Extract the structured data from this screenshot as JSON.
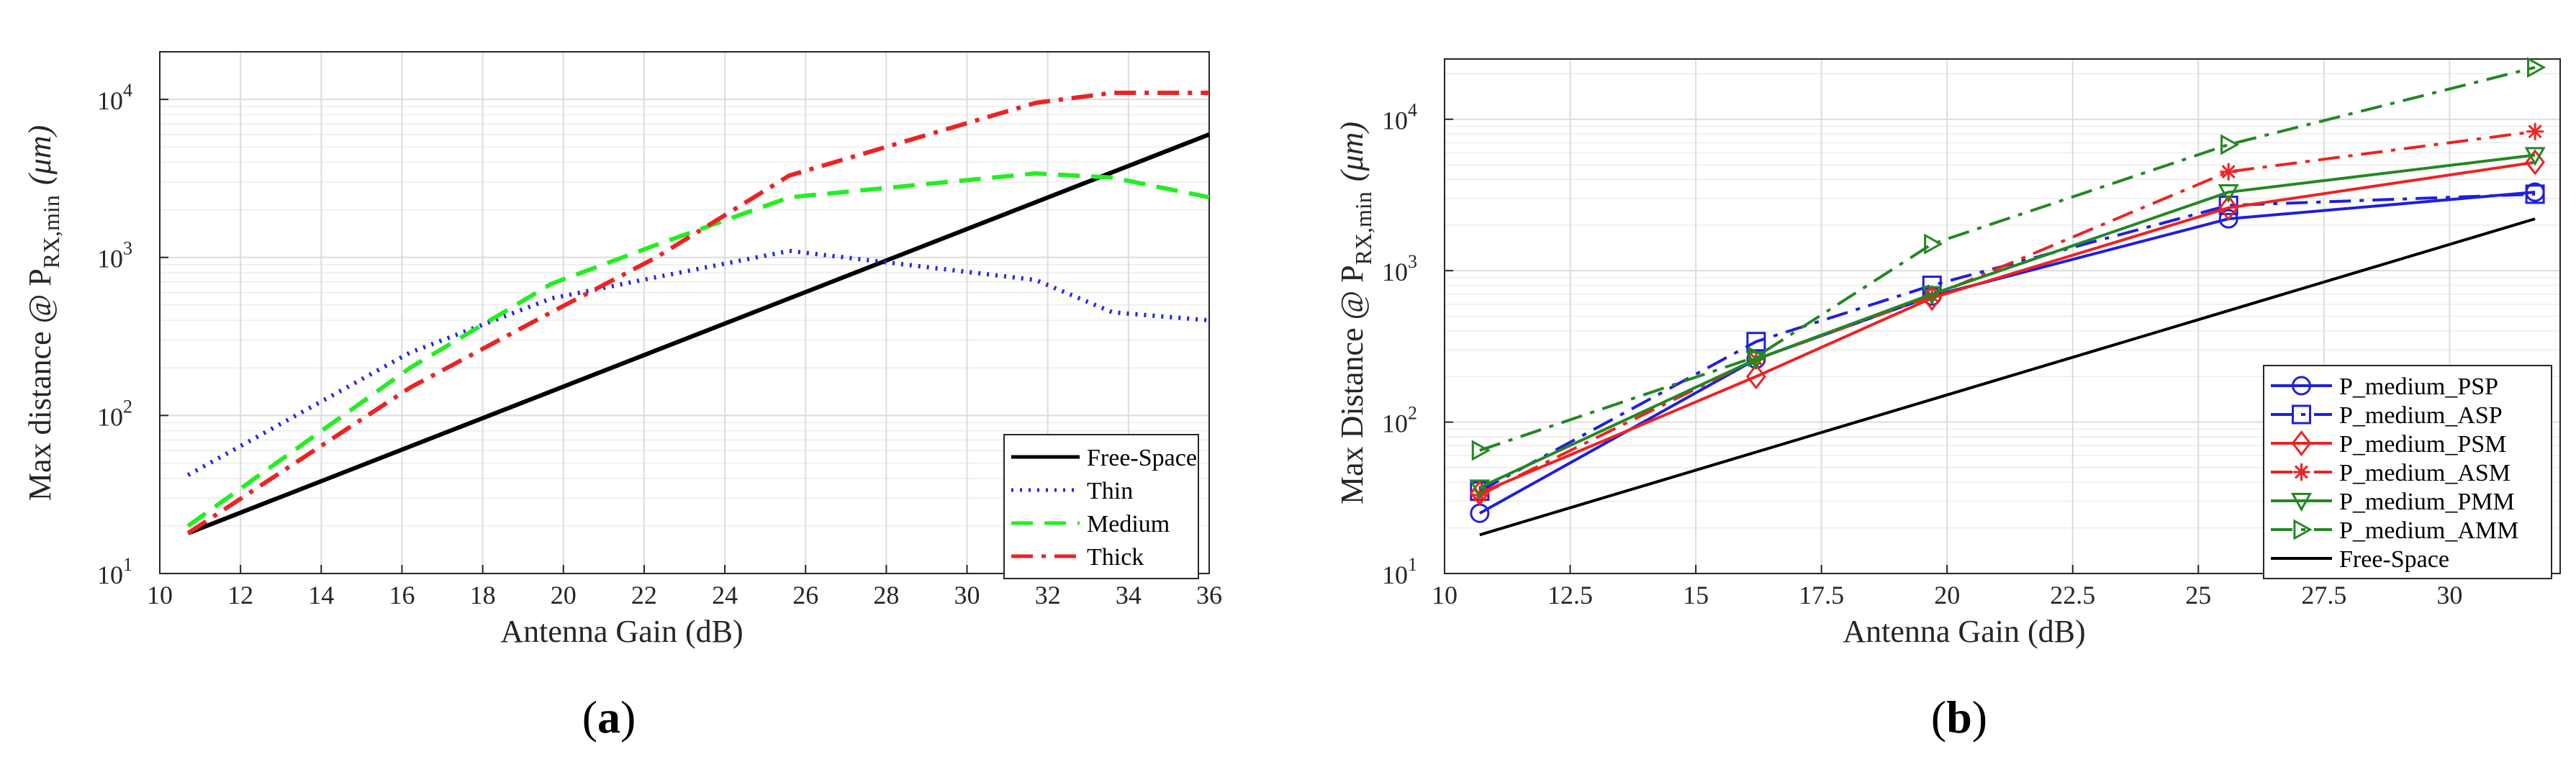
{
  "chart_data": [
    {
      "type": "line",
      "id": "a",
      "caption_open": "(",
      "caption_letter": "a",
      "caption_close": ")",
      "xlabel": "Antenna Gain (dB)",
      "ylabel_main": "Max distance @ P",
      "ylabel_sub": "RX,min",
      "ylabel_unit": "(μm)",
      "yscale": "log",
      "xlim": [
        10,
        36
      ],
      "ylim": [
        10,
        20000
      ],
      "xticks": [
        10,
        12,
        14,
        16,
        18,
        20,
        22,
        24,
        26,
        28,
        30,
        32,
        34,
        36
      ],
      "xtick_labels": [
        "10",
        "12",
        "14",
        "16",
        "18",
        "20",
        "22",
        "24",
        "26",
        "28",
        "30",
        "32",
        "34",
        "36"
      ],
      "yticks": [
        10,
        100,
        1000,
        10000
      ],
      "ytick_base": [
        "10",
        "10",
        "10",
        "10"
      ],
      "ytick_exp": [
        "1",
        "2",
        "3",
        "4"
      ],
      "legend_position": "lower-right",
      "series": [
        {
          "name": "Free-Space",
          "color": "#000000",
          "dash": "solid",
          "x": [
            10.7,
            36
          ],
          "y": [
            18,
            6000
          ]
        },
        {
          "name": "Thin",
          "color": "#2222ee",
          "dash": "dot",
          "x": [
            10.7,
            16.2,
            19.7,
            22.3,
            25.6,
            31.7,
            33.6,
            36
          ],
          "y": [
            42,
            250,
            550,
            750,
            1100,
            720,
            450,
            400
          ]
        },
        {
          "name": "Medium",
          "color": "#22ee22",
          "dash": "dash",
          "x": [
            10.7,
            16.2,
            19.7,
            22.3,
            25.6,
            31.7,
            33.6,
            36
          ],
          "y": [
            20,
            200,
            680,
            1200,
            2400,
            3400,
            3200,
            2400
          ]
        },
        {
          "name": "Thick",
          "color": "#ee2222",
          "dash": "dashdot",
          "x": [
            10.7,
            16.2,
            19.7,
            22.3,
            25.6,
            31.7,
            33.6,
            36
          ],
          "y": [
            18,
            150,
            450,
            1000,
            3300,
            9500,
            11000,
            11000
          ]
        }
      ]
    },
    {
      "type": "line",
      "id": "b",
      "caption_open": "(",
      "caption_letter": "b",
      "caption_close": ")",
      "xlabel": "Antenna Gain (dB)",
      "ylabel_main": "Max Distance @ P",
      "ylabel_sub": "RX,min",
      "ylabel_unit": "(μm)",
      "yscale": "log",
      "xlim": [
        10,
        32.2
      ],
      "ylim": [
        10,
        25000
      ],
      "xticks": [
        10,
        12.5,
        15,
        17.5,
        20,
        22.5,
        25,
        27.5,
        30
      ],
      "xtick_labels": [
        "10",
        "12.5",
        "15",
        "17.5",
        "20",
        "22.5",
        "25",
        "27.5",
        "30"
      ],
      "yticks": [
        10,
        100,
        1000,
        10000
      ],
      "ytick_base": [
        "10",
        "10",
        "10",
        "10"
      ],
      "ytick_exp": [
        "1",
        "2",
        "3",
        "4"
      ],
      "legend_position": "lower-right",
      "series": [
        {
          "name": "P_medium_PSP",
          "color": "#1f1fdd",
          "dash": "solid",
          "marker": "circle",
          "x": [
            10.7,
            16.2,
            19.7,
            25.6,
            31.7
          ],
          "y": [
            25,
            260,
            680,
            2200,
            3300
          ]
        },
        {
          "name": "P_medium_ASP",
          "color": "#1f1fdd",
          "dash": "dashdot",
          "marker": "square",
          "x": [
            10.7,
            16.2,
            19.7,
            25.6,
            31.7
          ],
          "y": [
            35,
            340,
            800,
            2700,
            3200
          ]
        },
        {
          "name": "P_medium_PSM",
          "color": "#ee2222",
          "dash": "solid",
          "marker": "diamond",
          "x": [
            10.7,
            16.2,
            19.7,
            25.6,
            31.7
          ],
          "y": [
            34,
            200,
            660,
            2600,
            5200
          ]
        },
        {
          "name": "P_medium_ASM",
          "color": "#ee2222",
          "dash": "dashdot",
          "marker": "star",
          "x": [
            10.7,
            16.2,
            19.7,
            25.6,
            31.7
          ],
          "y": [
            33,
            260,
            680,
            4500,
            8300
          ]
        },
        {
          "name": "P_medium_PMM",
          "color": "#228822",
          "dash": "solid",
          "marker": "triangle-down",
          "x": [
            10.7,
            16.2,
            19.7,
            25.6,
            31.7
          ],
          "y": [
            37,
            260,
            700,
            3300,
            5800
          ]
        },
        {
          "name": "P_medium_AMM",
          "color": "#228822",
          "dash": "dashdot",
          "marker": "triangle-right",
          "x": [
            10.7,
            16.2,
            19.7,
            25.6,
            31.7
          ],
          "y": [
            65,
            270,
            1500,
            6800,
            22000
          ]
        },
        {
          "name": "Free-Space",
          "color": "#000000",
          "dash": "solid",
          "marker": "none",
          "x": [
            10.7,
            31.7
          ],
          "y": [
            18,
            2200
          ]
        }
      ]
    }
  ]
}
